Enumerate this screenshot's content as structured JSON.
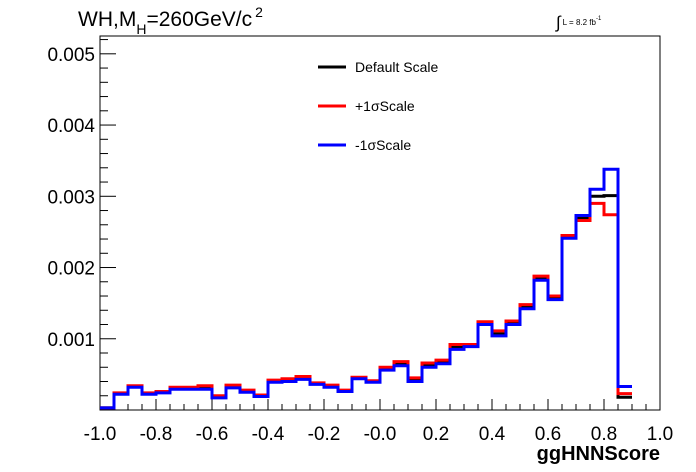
{
  "header": {
    "title_main": "WH,M",
    "title_sub": "H",
    "title_rest": "=260GeV/c",
    "title_sup": "2",
    "lumi_text": "L = 8.2 fb",
    "lumi_sup": "-1"
  },
  "chart_data": {
    "type": "line",
    "style": "step-histogram",
    "xlabel": "ggHNNScore",
    "ylabel": "",
    "xlim": [
      -1.0,
      1.0
    ],
    "ylim": [
      0.0,
      0.00525
    ],
    "x_ticks": [
      -1.0,
      -0.8,
      -0.6,
      -0.4,
      -0.2,
      0.0,
      0.2,
      0.4,
      0.6,
      0.8,
      1.0
    ],
    "x_tick_labels": [
      "-1.0",
      "-0.8",
      "-0.6",
      "-0.4",
      "-0.2",
      "-0.0",
      "0.2",
      "0.4",
      "0.6",
      "0.8",
      "1.0"
    ],
    "y_ticks": [
      0.001,
      0.002,
      0.003,
      0.004,
      0.005
    ],
    "y_tick_labels": [
      "0.001",
      "0.002",
      "0.003",
      "0.004",
      "0.005"
    ],
    "grid": false,
    "legend_position": "top-center",
    "bin_width": 0.05,
    "bin_start": -1.0,
    "series": [
      {
        "name": "Default Scale",
        "color": "#000000",
        "values": [
          3e-05,
          0.00023,
          0.00033,
          0.00023,
          0.00025,
          0.0003,
          0.0003,
          0.00031,
          0.00018,
          0.00033,
          0.00026,
          0.0002,
          0.0004,
          0.00042,
          0.00045,
          0.00037,
          0.00033,
          0.00027,
          0.00045,
          0.0004,
          0.00058,
          0.00065,
          0.00042,
          0.00063,
          0.00068,
          0.00088,
          0.0009,
          0.00122,
          0.00107,
          0.00122,
          0.00145,
          0.00185,
          0.00157,
          0.00243,
          0.0027,
          0.003,
          0.00301,
          0.00018
        ]
      },
      {
        "name": "+1σScale",
        "color": "#ff0000",
        "values": [
          3e-05,
          0.00024,
          0.00034,
          0.00024,
          0.00026,
          0.00032,
          0.00032,
          0.00034,
          0.0002,
          0.00035,
          0.00028,
          0.00021,
          0.00042,
          0.00044,
          0.00047,
          0.00038,
          0.00035,
          0.00028,
          0.00046,
          0.00041,
          0.0006,
          0.00068,
          0.00045,
          0.00066,
          0.0007,
          0.00092,
          0.00092,
          0.00124,
          0.00111,
          0.00125,
          0.00148,
          0.00188,
          0.0016,
          0.00245,
          0.00266,
          0.0029,
          0.00274,
          0.00023
        ]
      },
      {
        "name": "-1σScale",
        "color": "#0000ff",
        "values": [
          3e-05,
          0.00022,
          0.00032,
          0.00022,
          0.00024,
          0.00029,
          0.00029,
          0.00029,
          0.00017,
          0.00031,
          0.00025,
          0.00019,
          0.00039,
          0.0004,
          0.00043,
          0.00036,
          0.00032,
          0.00026,
          0.00044,
          0.00039,
          0.00056,
          0.00062,
          0.0004,
          0.0006,
          0.00065,
          0.00085,
          0.00089,
          0.0012,
          0.00104,
          0.0012,
          0.00142,
          0.00182,
          0.00155,
          0.00241,
          0.00273,
          0.0031,
          0.00338,
          0.00033
        ]
      }
    ]
  }
}
